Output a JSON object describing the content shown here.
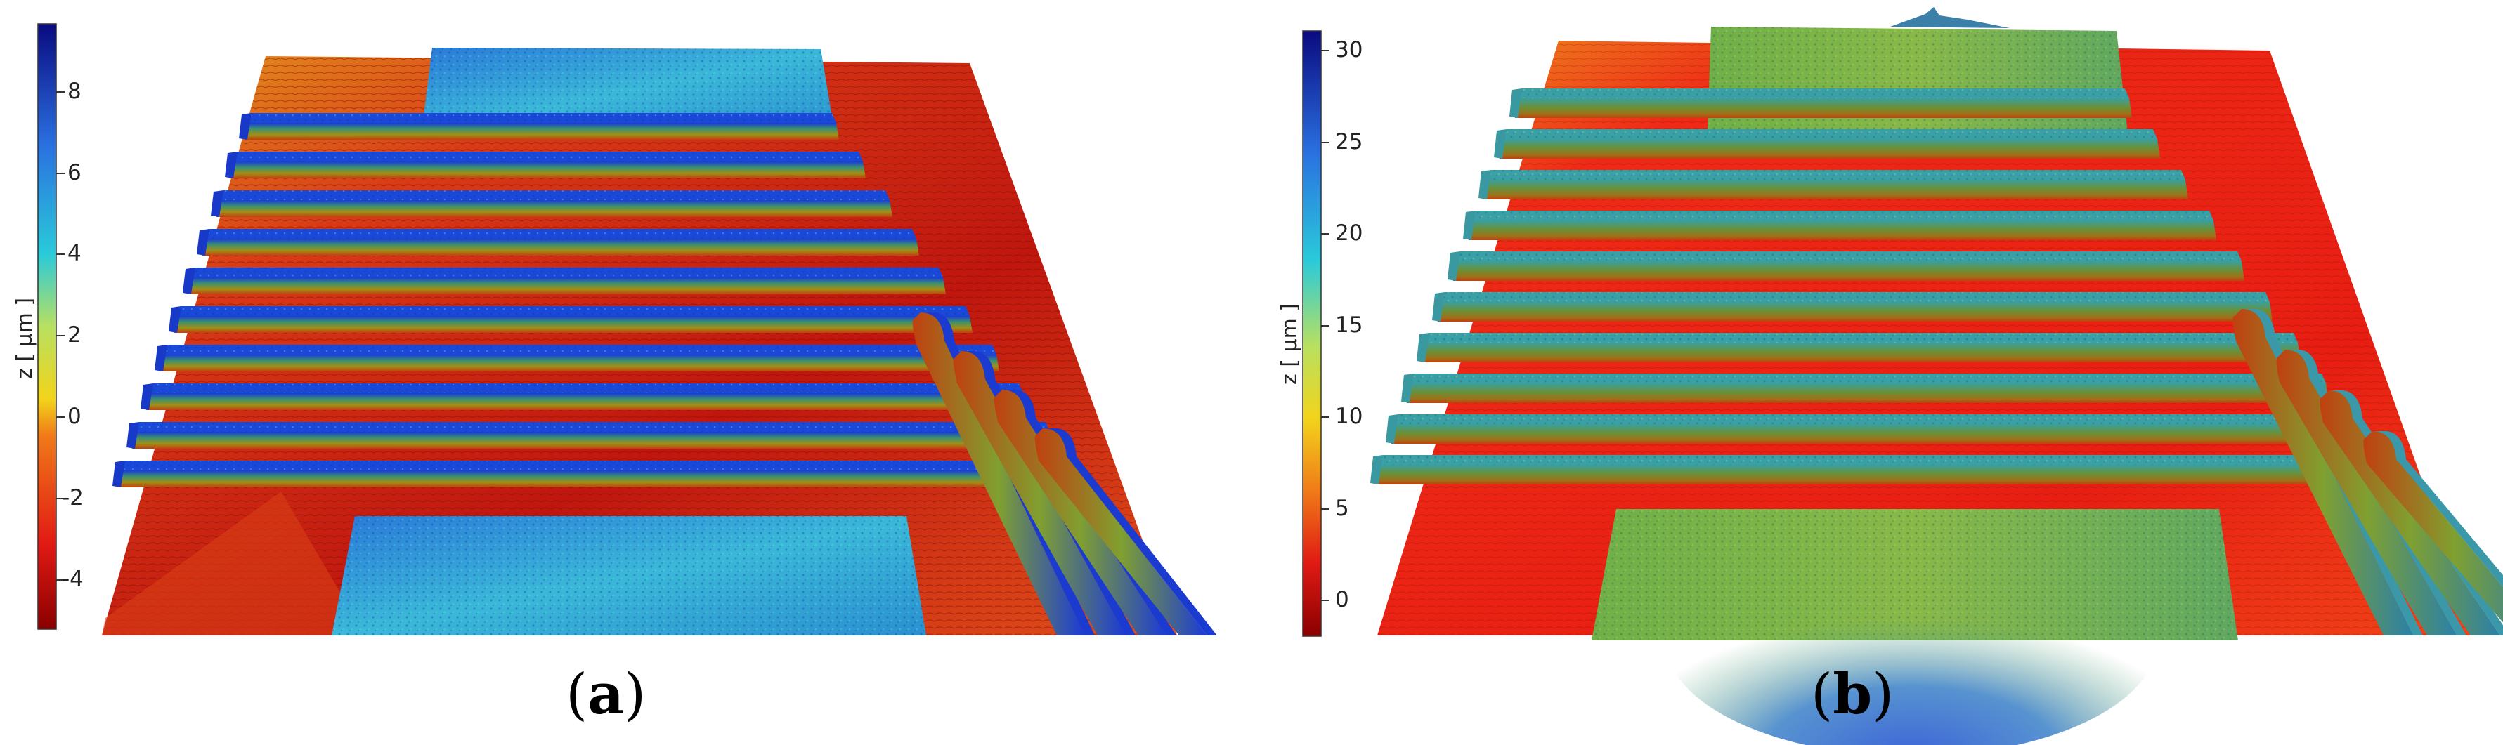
{
  "panels": [
    {
      "id": "a",
      "caption_letter": "a",
      "colorbar": {
        "title": "z [ µm ]",
        "ticks": [
          "8",
          "6",
          "4",
          "2",
          "0",
          "-2",
          "-4"
        ],
        "range": [
          -5.2,
          9.6
        ]
      }
    },
    {
      "id": "b",
      "caption_letter": "b",
      "colorbar": {
        "title": "z [ µm ]",
        "ticks": [
          "30",
          "25",
          "20",
          "15",
          "10",
          "5",
          "0"
        ],
        "range": [
          -2.5,
          31
        ]
      }
    }
  ],
  "colors": {
    "low": "#a00000",
    "red": "#e8231a",
    "orange": "#f07f1a",
    "yellow": "#f0d21e",
    "cyan": "#2ac8d8",
    "blue": "#1a3ad8",
    "high": "#0a0a8a"
  }
}
